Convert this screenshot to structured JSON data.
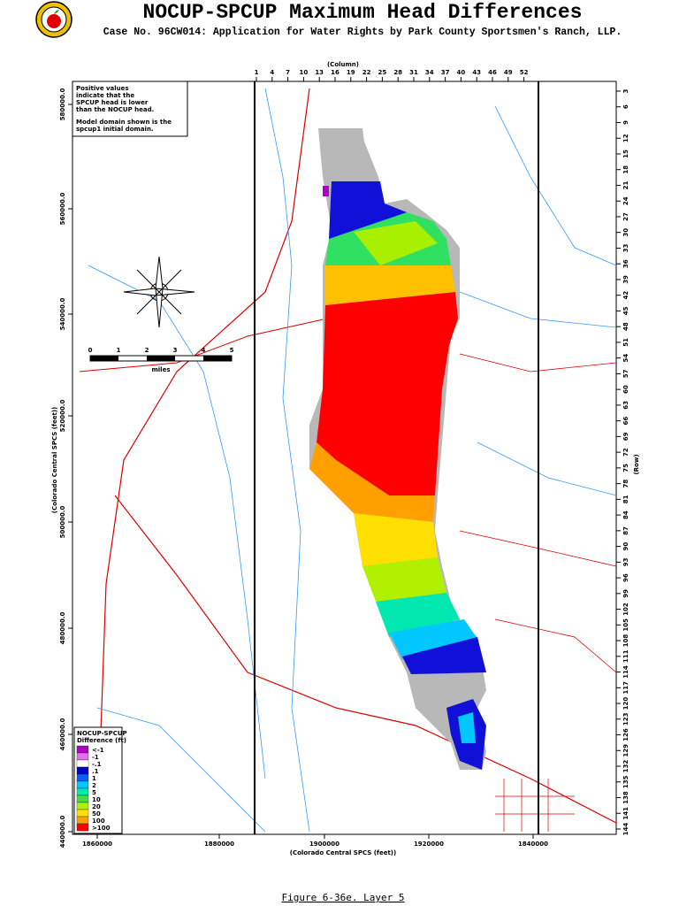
{
  "header": {
    "title": "NOCUP-SPCUP Maximum Head Differences",
    "subtitle": "Case No. 96CW014: Application for Water Rights by Park County Sportsmen's Ranch, LLP."
  },
  "notes": [
    "Positive values",
    "indicate that the",
    "SPCUP head is lower",
    "than the NOCUP head.",
    "Model domain shown is the",
    "spcup1 initial domain."
  ],
  "scale": {
    "labels": [
      "0",
      "1",
      "2",
      "3",
      "4",
      "5"
    ],
    "unit": "miles"
  },
  "columns": {
    "label": "(Column)",
    "values": [
      1,
      4,
      7,
      10,
      13,
      16,
      19,
      22,
      25,
      28,
      31,
      34,
      37,
      40,
      43,
      46,
      49,
      52
    ]
  },
  "rows": {
    "label": "(Row)",
    "values": [
      3,
      6,
      9,
      12,
      15,
      18,
      21,
      24,
      27,
      30,
      33,
      36,
      39,
      42,
      45,
      48,
      51,
      54,
      57,
      60,
      63,
      66,
      69,
      72,
      75,
      78,
      81,
      84,
      87,
      90,
      93,
      96,
      99,
      102,
      105,
      108,
      111,
      114,
      117,
      120,
      123,
      126,
      129,
      132,
      135,
      138,
      141,
      144
    ]
  },
  "x_axis": {
    "label": "(Colorado Central SPCS (feet))",
    "ticks": [
      "1860000",
      "1880000",
      "1900000",
      "1920000",
      "1840000"
    ]
  },
  "y_axis": {
    "label": "(Colorado Central SPCS (feet))",
    "ticks": [
      "580000.0",
      "560000.0",
      "540000.0",
      "520000.0",
      "500000.0",
      "480000.0",
      "460000.0",
      "440000.0"
    ]
  },
  "legend": {
    "title": "NOCUP-SPCUP",
    "subtitle": "Difference (ft)",
    "items": [
      {
        "label": "<-1",
        "color": "#b000c8"
      },
      {
        "label": "-1",
        "color": "#e070f0"
      },
      {
        "label": "-.1",
        "color": "#ffffff"
      },
      {
        "label": ".1",
        "color": "#0000d0"
      },
      {
        "label": "1",
        "color": "#0060ff"
      },
      {
        "label": "2",
        "color": "#00c8ff"
      },
      {
        "label": "5",
        "color": "#00e8b0"
      },
      {
        "label": "10",
        "color": "#40e040"
      },
      {
        "label": "20",
        "color": "#b0f000"
      },
      {
        "label": "50",
        "color": "#ffe000"
      },
      {
        "label": "100",
        "color": "#ffa000"
      },
      {
        "label": ">100",
        "color": "#ff0000"
      }
    ]
  },
  "caption": "Figure 6-36e.   Layer 5"
}
